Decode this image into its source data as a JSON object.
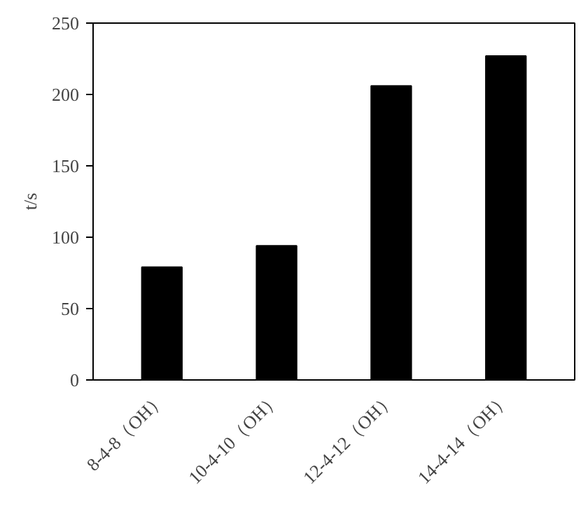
{
  "chart_data": {
    "type": "bar",
    "ylabel": "t/s",
    "categories": [
      "8-4-8（OH）",
      "10-4-10（OH）",
      "12-4-12（OH）",
      "14-4-14（OH）"
    ],
    "values": [
      79,
      94,
      206,
      227
    ],
    "color": "#000000",
    "ylim": [
      0,
      250
    ],
    "yticks": [
      0,
      50,
      100,
      150,
      200,
      250
    ],
    "grid": false
  }
}
